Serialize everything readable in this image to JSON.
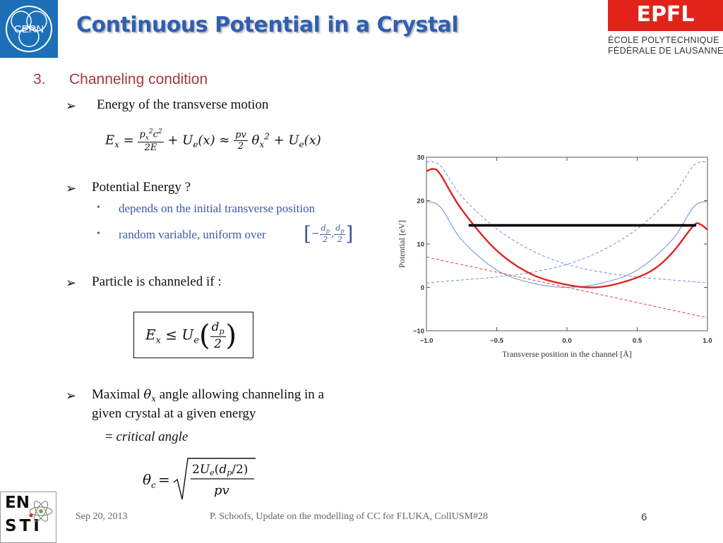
{
  "header": {
    "title": "Continuous Potential in a Crystal",
    "cern_logo_text": "CERN",
    "epfl_logo_text": "EPFL",
    "epfl_line1": "ÉCOLE POLYTECHNIQUE",
    "epfl_line2": "FÉDÉRALE DE LAUSANNE"
  },
  "section": {
    "number": "3.",
    "title": "Channeling condition"
  },
  "bullets": {
    "b1": "Energy of the transverse motion",
    "b2": "Potential Energy ?",
    "b2_sub1": "depends on the initial transverse position",
    "b2_sub2": "random variable, uniform over",
    "b3": "Particle is channeled if :",
    "b4_line1_a": "Maximal",
    "b4_line1_b": "angle allowing channeling in a",
    "b4_line2": "given crystal at a given energy",
    "b4_line3_prefix": "=",
    "b4_line3_em": "critical angle"
  },
  "equations": {
    "eq1": "E_x = p_x^2 c^2 / 2E + U_e(x) ≈ pv/2 θ_x^2 + U_e(x)",
    "eq2": "E_x ≤ U_e(d_p/2)",
    "eq3": "θ_c = sqrt(2U_e(d_p/2) / pv)"
  },
  "chart_data": {
    "type": "line",
    "title": "",
    "xlabel": "Transverse position in the channel [Å]",
    "ylabel": "Potential [eV]",
    "xlim": [
      -1.0,
      1.0
    ],
    "ylim": [
      -10,
      30
    ],
    "xticks": [
      "-1.0",
      "-0.5",
      "0.0",
      "0.5",
      "1.0"
    ],
    "yticks": [
      "30",
      "20",
      "10",
      "0",
      "-10"
    ],
    "grid": false,
    "series": [
      {
        "style": "solid-blue",
        "color": "#6b8fd4",
        "x": [
          -1.0,
          -0.9,
          -0.75,
          -0.5,
          -0.25,
          0.0,
          0.25,
          0.5,
          0.75,
          0.9,
          1.0
        ],
        "y": [
          19.8,
          18.5,
          11.0,
          4.0,
          1.0,
          0.0,
          1.0,
          4.0,
          11.0,
          18.5,
          19.8
        ]
      },
      {
        "style": "dashed-blue-left",
        "color": "#6b8fd4",
        "x": [
          -1.0,
          -0.9,
          -0.75,
          -0.5,
          -0.25,
          0.0,
          0.25,
          0.5,
          0.75,
          0.9,
          1.0
        ],
        "y": [
          29.0,
          28.0,
          21.0,
          13.5,
          8.5,
          5.3,
          3.5,
          2.4,
          1.7,
          1.3,
          1.0
        ]
      },
      {
        "style": "dashed-blue-right",
        "color": "#6b8fd4",
        "x": [
          -1.0,
          -0.9,
          -0.75,
          -0.5,
          -0.25,
          0.0,
          0.25,
          0.5,
          0.75,
          0.9,
          1.0
        ],
        "y": [
          1.0,
          1.3,
          1.7,
          2.4,
          3.5,
          5.3,
          8.5,
          13.5,
          21.0,
          28.0,
          29.0
        ]
      },
      {
        "style": "dashed-red",
        "color": "#e53b32",
        "x": [
          -1.0,
          1.0
        ],
        "y": [
          7.0,
          -7.0
        ]
      },
      {
        "style": "solid-red",
        "color": "#e0231f",
        "x": [
          -1.0,
          -0.95,
          -0.9,
          -0.75,
          -0.5,
          -0.25,
          0.0,
          0.2,
          0.4,
          0.6,
          0.75,
          0.9,
          0.95,
          1.0
        ],
        "y": [
          26.8,
          27.3,
          26.0,
          18.0,
          8.5,
          3.0,
          0.6,
          0.0,
          1.2,
          3.8,
          8.0,
          14.2,
          14.5,
          13.3
        ]
      },
      {
        "style": "solid-black",
        "color": "#000000",
        "x": [
          -0.7,
          0.92
        ],
        "y": [
          14.3,
          14.3
        ]
      }
    ]
  },
  "footer": {
    "date": "Sep 20, 2013",
    "center": "P. Schoofs, Update on the modelling of CC for FLUKA, CollUSM#28",
    "page": "6",
    "ensti_line1": "EN",
    "ensti_line2": "STI"
  }
}
